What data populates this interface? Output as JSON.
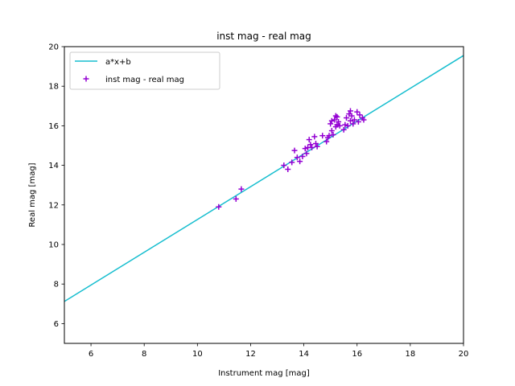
{
  "chart_data": {
    "type": "scatter",
    "title": "inst mag - real mag",
    "xlabel": "Instrument mag [mag]",
    "ylabel": "Real mag [mag]",
    "xlim": [
      5,
      20
    ],
    "ylim": [
      5,
      20
    ],
    "xticks": [
      6,
      8,
      10,
      12,
      14,
      16,
      18,
      20
    ],
    "yticks": [
      6,
      8,
      10,
      12,
      14,
      16,
      18,
      20
    ],
    "grid": false,
    "legend_position": "top-left",
    "colors": {
      "fit_line": "#17becf",
      "points": "#9400d3"
    },
    "fit_line": {
      "name": "a*x+b",
      "x": [
        5,
        20
      ],
      "y": [
        7.12,
        19.55
      ]
    },
    "series": [
      {
        "name": "inst mag - real mag",
        "marker": "plus",
        "x": [
          10.8,
          11.45,
          11.65,
          13.25,
          13.4,
          13.55,
          13.65,
          13.75,
          13.85,
          13.95,
          14.05,
          14.1,
          14.15,
          14.2,
          14.25,
          14.3,
          14.4,
          14.45,
          14.5,
          14.7,
          14.85,
          14.9,
          14.95,
          15.0,
          15.05,
          15.05,
          15.1,
          15.15,
          15.2,
          15.2,
          15.25,
          15.25,
          15.3,
          15.35,
          15.5,
          15.55,
          15.6,
          15.65,
          15.7,
          15.75,
          15.75,
          15.8,
          15.85,
          15.9,
          16.0,
          16.05,
          16.1,
          16.2,
          16.25
        ],
        "y": [
          11.9,
          12.3,
          12.8,
          14.0,
          13.8,
          14.15,
          14.75,
          14.4,
          14.2,
          14.45,
          14.85,
          14.6,
          14.9,
          15.3,
          15.05,
          14.9,
          15.45,
          15.1,
          14.95,
          15.5,
          15.2,
          15.4,
          15.5,
          16.1,
          16.25,
          15.75,
          15.55,
          16.3,
          15.95,
          16.5,
          16.45,
          16.05,
          16.2,
          16.0,
          15.8,
          16.05,
          16.4,
          16.0,
          16.6,
          16.25,
          16.75,
          16.5,
          16.1,
          16.3,
          16.7,
          16.2,
          16.55,
          16.4,
          16.3
        ]
      }
    ]
  }
}
